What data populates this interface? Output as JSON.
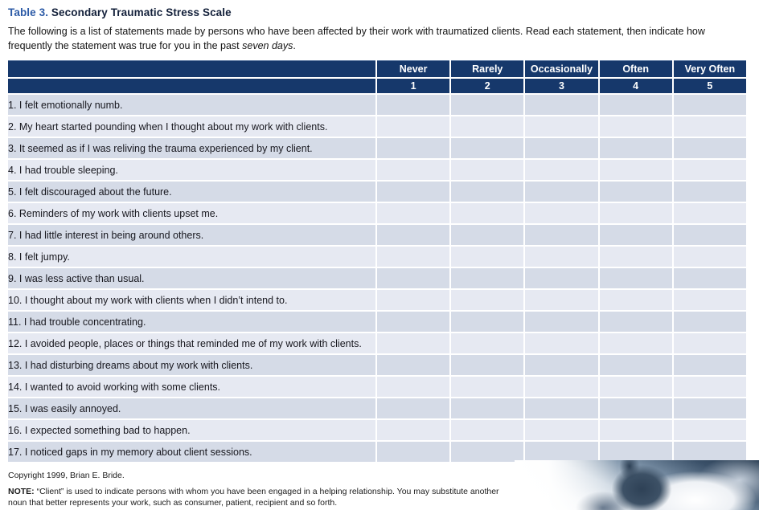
{
  "title": {
    "prefix": "Table 3.",
    "text": " Secondary Traumatic Stress Scale"
  },
  "intro": {
    "before_italic": "The following is a list of statements made by persons who have been affected by their work with traumatized clients. Read each statement, then indicate how frequently the statement was true for you in the past ",
    "italic": "seven days",
    "after_italic": "."
  },
  "table": {
    "columns": [
      {
        "label": "Never",
        "value": "1"
      },
      {
        "label": "Rarely",
        "value": "2"
      },
      {
        "label": "Occasionally",
        "value": "3"
      },
      {
        "label": "Often",
        "value": "4"
      },
      {
        "label": "Very Often",
        "value": "5"
      }
    ],
    "items": [
      "1. I felt emotionally numb.",
      "2. My heart started pounding when I thought about my work with clients.",
      "3. It seemed as if I was reliving the trauma experienced by my client.",
      "4. I had trouble sleeping.",
      "5. I felt discouraged about the future.",
      "6. Reminders of my work with clients upset me.",
      "7. I had little interest in being around others.",
      "8. I felt jumpy.",
      "9. I was less active than usual.",
      "10. I thought about my work with clients when I didn’t intend to.",
      "11. I had trouble concentrating.",
      "12. I avoided people, places or things that reminded me of my work with clients.",
      "13. I had disturbing dreams about my work with clients.",
      "14. I wanted to avoid working with some clients.",
      "15. I was easily annoyed.",
      "16. I expected something bad to happen.",
      "17. I noticed gaps in my memory about client sessions."
    ]
  },
  "footer": {
    "copyright": "Copyright 1999, Brian E. Bride.",
    "note_label": "NOTE:",
    "note_text": " “Client” is used to indicate persons with whom you have been engaged in a helping relationship. You may substitute another noun that better represents your work, such as consumer, patient, recipient and so forth."
  },
  "colors": {
    "header_bg": "#16386B",
    "row_odd": "#D5DBE7",
    "row_even": "#E6E9F2",
    "title_accent": "#2B5AA6",
    "title_text": "#13203A"
  }
}
